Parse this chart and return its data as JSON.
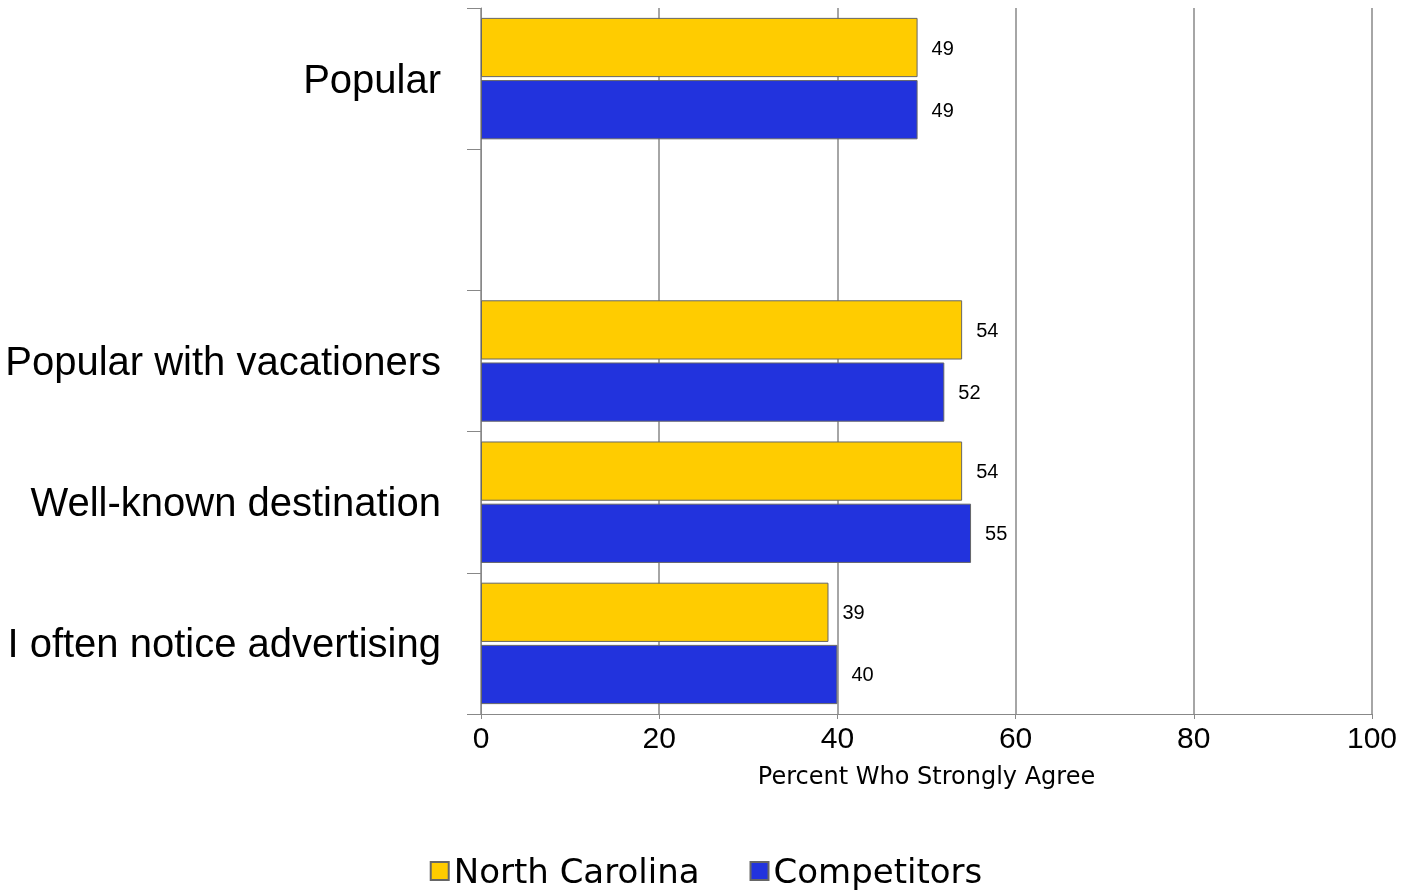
{
  "chart_data": {
    "type": "bar",
    "orientation": "horizontal",
    "categories": [
      "Popular",
      null,
      "Popular with vacationers",
      "Well-known destination",
      "I often notice advertising"
    ],
    "series": [
      {
        "name": "North Carolina",
        "color": "#ffcc00",
        "values": [
          49,
          null,
          54,
          54,
          39
        ]
      },
      {
        "name": "Competitors",
        "color": "#2233dd",
        "values": [
          49,
          null,
          52,
          55,
          40
        ]
      }
    ],
    "xlabel": "Percent Who Strongly Agree",
    "xlim": [
      0,
      100
    ],
    "xticks": [
      0,
      20,
      40,
      60,
      80,
      100
    ],
    "grid": "x",
    "legend": "bottom",
    "data_labels": true
  }
}
